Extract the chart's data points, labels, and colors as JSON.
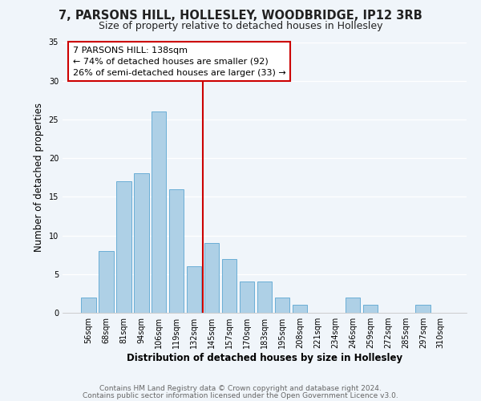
{
  "title_line1": "7, PARSONS HILL, HOLLESLEY, WOODBRIDGE, IP12 3RB",
  "title_line2": "Size of property relative to detached houses in Hollesley",
  "xlabel": "Distribution of detached houses by size in Hollesley",
  "ylabel": "Number of detached properties",
  "bar_labels": [
    "56sqm",
    "68sqm",
    "81sqm",
    "94sqm",
    "106sqm",
    "119sqm",
    "132sqm",
    "145sqm",
    "157sqm",
    "170sqm",
    "183sqm",
    "195sqm",
    "208sqm",
    "221sqm",
    "234sqm",
    "246sqm",
    "259sqm",
    "272sqm",
    "285sqm",
    "297sqm",
    "310sqm"
  ],
  "bar_values": [
    2,
    8,
    17,
    18,
    26,
    16,
    6,
    9,
    7,
    4,
    4,
    2,
    1,
    0,
    0,
    2,
    1,
    0,
    0,
    1,
    0
  ],
  "bar_color": "#aed0e6",
  "bar_edge_color": "#6aaed6",
  "reference_line_color": "#cc0000",
  "annotation_title": "7 PARSONS HILL: 138sqm",
  "annotation_line1": "← 74% of detached houses are smaller (92)",
  "annotation_line2": "26% of semi-detached houses are larger (33) →",
  "annotation_box_color": "#ffffff",
  "annotation_box_edge_color": "#cc0000",
  "ylim": [
    0,
    35
  ],
  "yticks": [
    0,
    5,
    10,
    15,
    20,
    25,
    30,
    35
  ],
  "footer_line1": "Contains HM Land Registry data © Crown copyright and database right 2024.",
  "footer_line2": "Contains public sector information licensed under the Open Government Licence v3.0.",
  "background_color": "#f0f5fa",
  "grid_color": "#ffffff",
  "title_fontsize": 10.5,
  "subtitle_fontsize": 9,
  "axis_label_fontsize": 8.5,
  "tick_fontsize": 7,
  "annotation_fontsize": 8,
  "footer_fontsize": 6.5
}
